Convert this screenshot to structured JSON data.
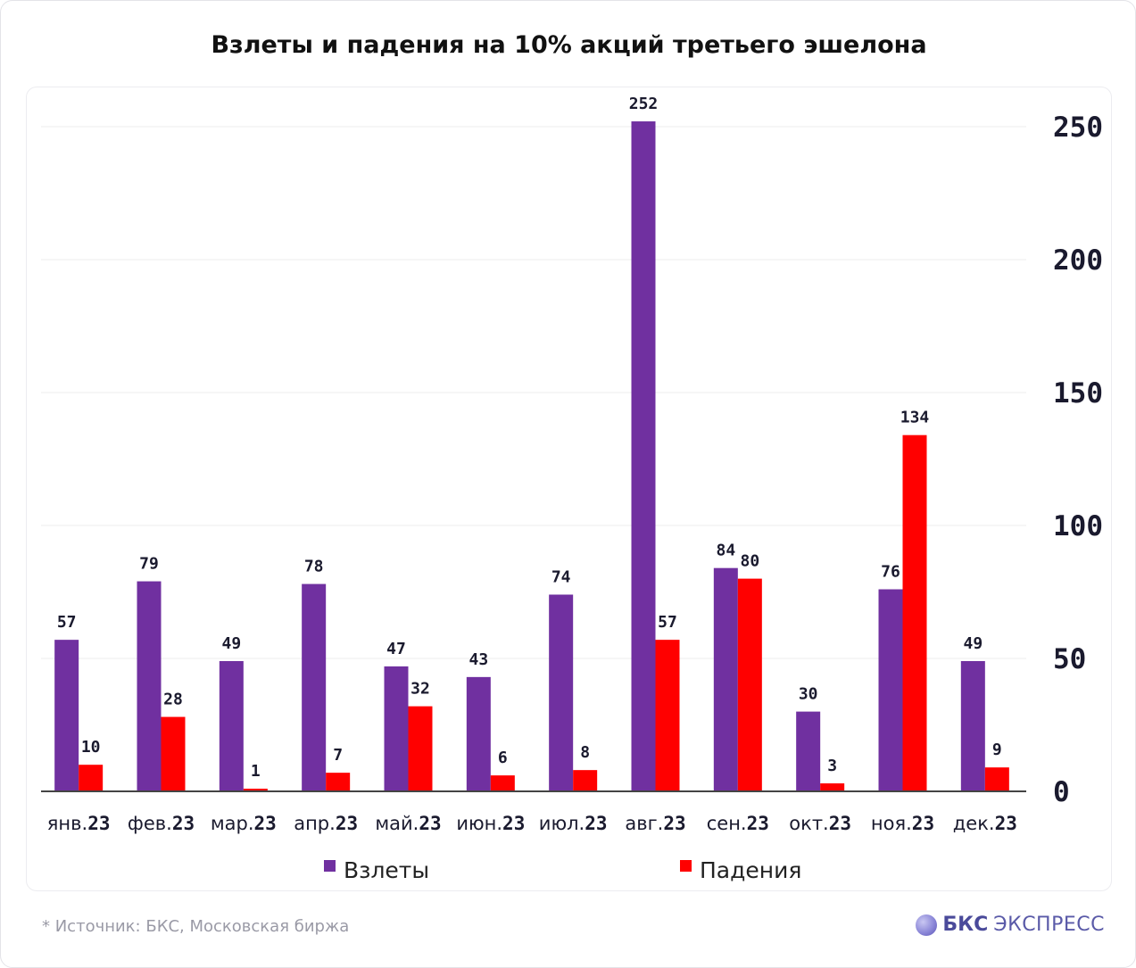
{
  "title": "Взлеты и падения на 10% акций третьего эшелона",
  "footer": {
    "source": "*  Источник: БКС, Московская биржа",
    "brand_name": "БКС",
    "brand_sub": "ЭКСПРЕСС"
  },
  "colors": {
    "rises": "#7030a0",
    "falls": "#ff0000"
  },
  "chart_data": {
    "type": "bar",
    "title": "Взлеты и падения на 10% акций третьего эшелона",
    "xlabel": "",
    "ylabel": "",
    "categories": [
      {
        "month": "янв.",
        "year": "23"
      },
      {
        "month": "фев.",
        "year": "23"
      },
      {
        "month": "мар.",
        "year": "23"
      },
      {
        "month": "апр.",
        "year": "23"
      },
      {
        "month": "май.",
        "year": "23"
      },
      {
        "month": "июн.",
        "year": "23"
      },
      {
        "month": "июл.",
        "year": "23"
      },
      {
        "month": "авг.",
        "year": "23"
      },
      {
        "month": "сен.",
        "year": "23"
      },
      {
        "month": "окт.",
        "year": "23"
      },
      {
        "month": "ноя.",
        "year": "23"
      },
      {
        "month": "дек.",
        "year": "23"
      }
    ],
    "series": [
      {
        "name": "Взлеты",
        "values": [
          57,
          79,
          49,
          78,
          47,
          43,
          74,
          252,
          84,
          30,
          76,
          49
        ]
      },
      {
        "name": "Падения",
        "values": [
          10,
          28,
          1,
          7,
          32,
          6,
          8,
          57,
          80,
          3,
          134,
          9
        ]
      }
    ],
    "ylim": [
      0,
      250
    ],
    "yticks": [
      0,
      50,
      100,
      150,
      200,
      250
    ],
    "y_axis_position": "right",
    "grid": true,
    "legend": "bottom"
  }
}
